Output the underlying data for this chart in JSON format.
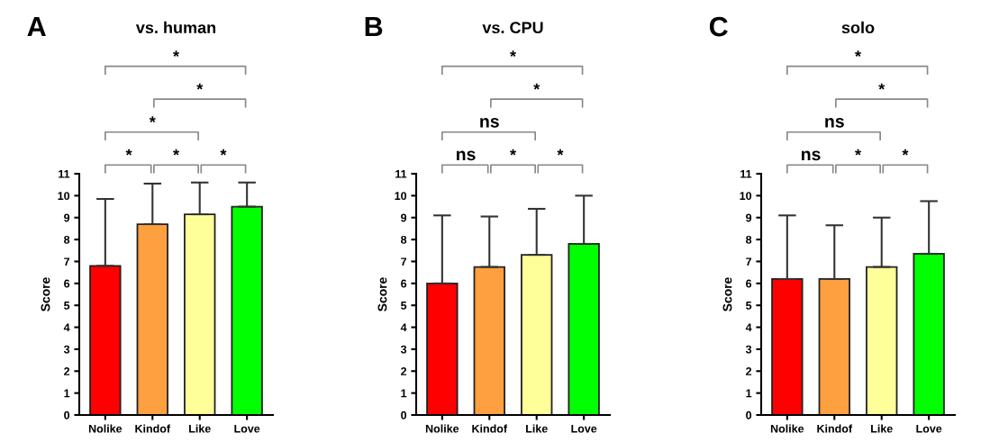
{
  "chart_data": [
    {
      "type": "bar",
      "title": "vs. human",
      "ylabel": "Score",
      "categories": [
        "Nolike",
        "Kindof",
        "Like",
        "Love"
      ],
      "values": [
        6.8,
        8.7,
        9.15,
        9.5
      ],
      "colors": [
        "#ff0000",
        "#ffa040",
        "#ffff99",
        "#00ff00"
      ],
      "errors": [
        [
          6.8,
          9.85
        ],
        [
          8.7,
          10.55
        ],
        [
          9.15,
          10.6
        ],
        [
          9.5,
          10.6
        ]
      ],
      "ylim": [
        0,
        11
      ],
      "yticks": [
        0,
        1,
        2,
        3,
        4,
        5,
        6,
        7,
        8,
        9,
        10,
        11
      ],
      "grid": false,
      "annotations": [
        "A",
        "*",
        "*",
        "*",
        "*",
        "*",
        "*"
      ]
    },
    {
      "type": "bar",
      "title": "vs. CPU",
      "ylabel": "Score",
      "categories": [
        "Nolike",
        "Kindof",
        "Like",
        "Love"
      ],
      "values": [
        6.0,
        6.75,
        7.3,
        7.8
      ],
      "colors": [
        "#ff0000",
        "#ffa040",
        "#ffff99",
        "#00ff00"
      ],
      "errors": [
        [
          6.0,
          9.1
        ],
        [
          6.75,
          9.05
        ],
        [
          7.3,
          9.4
        ],
        [
          7.8,
          10.0
        ]
      ],
      "ylim": [
        0,
        11
      ],
      "yticks": [
        0,
        1,
        2,
        3,
        4,
        5,
        6,
        7,
        8,
        9,
        10,
        11
      ],
      "grid": false,
      "annotations": [
        "B",
        "ns",
        "*",
        "*",
        "ns",
        "*",
        "*"
      ]
    },
    {
      "type": "bar",
      "title": "solo",
      "ylabel": "Score",
      "categories": [
        "Nolike",
        "Kindof",
        "Like",
        "Love"
      ],
      "values": [
        6.2,
        6.2,
        6.75,
        7.35
      ],
      "colors": [
        "#ff0000",
        "#ffa040",
        "#ffff99",
        "#00ff00"
      ],
      "errors": [
        [
          6.2,
          9.1
        ],
        [
          6.2,
          8.65
        ],
        [
          6.75,
          9.0
        ],
        [
          7.35,
          9.75
        ]
      ],
      "ylim": [
        0,
        11
      ],
      "yticks": [
        0,
        1,
        2,
        3,
        4,
        5,
        6,
        7,
        8,
        9,
        10,
        11
      ],
      "grid": false,
      "annotations": [
        "C",
        "ns",
        "*",
        "*",
        "ns",
        "*",
        "*"
      ]
    }
  ]
}
